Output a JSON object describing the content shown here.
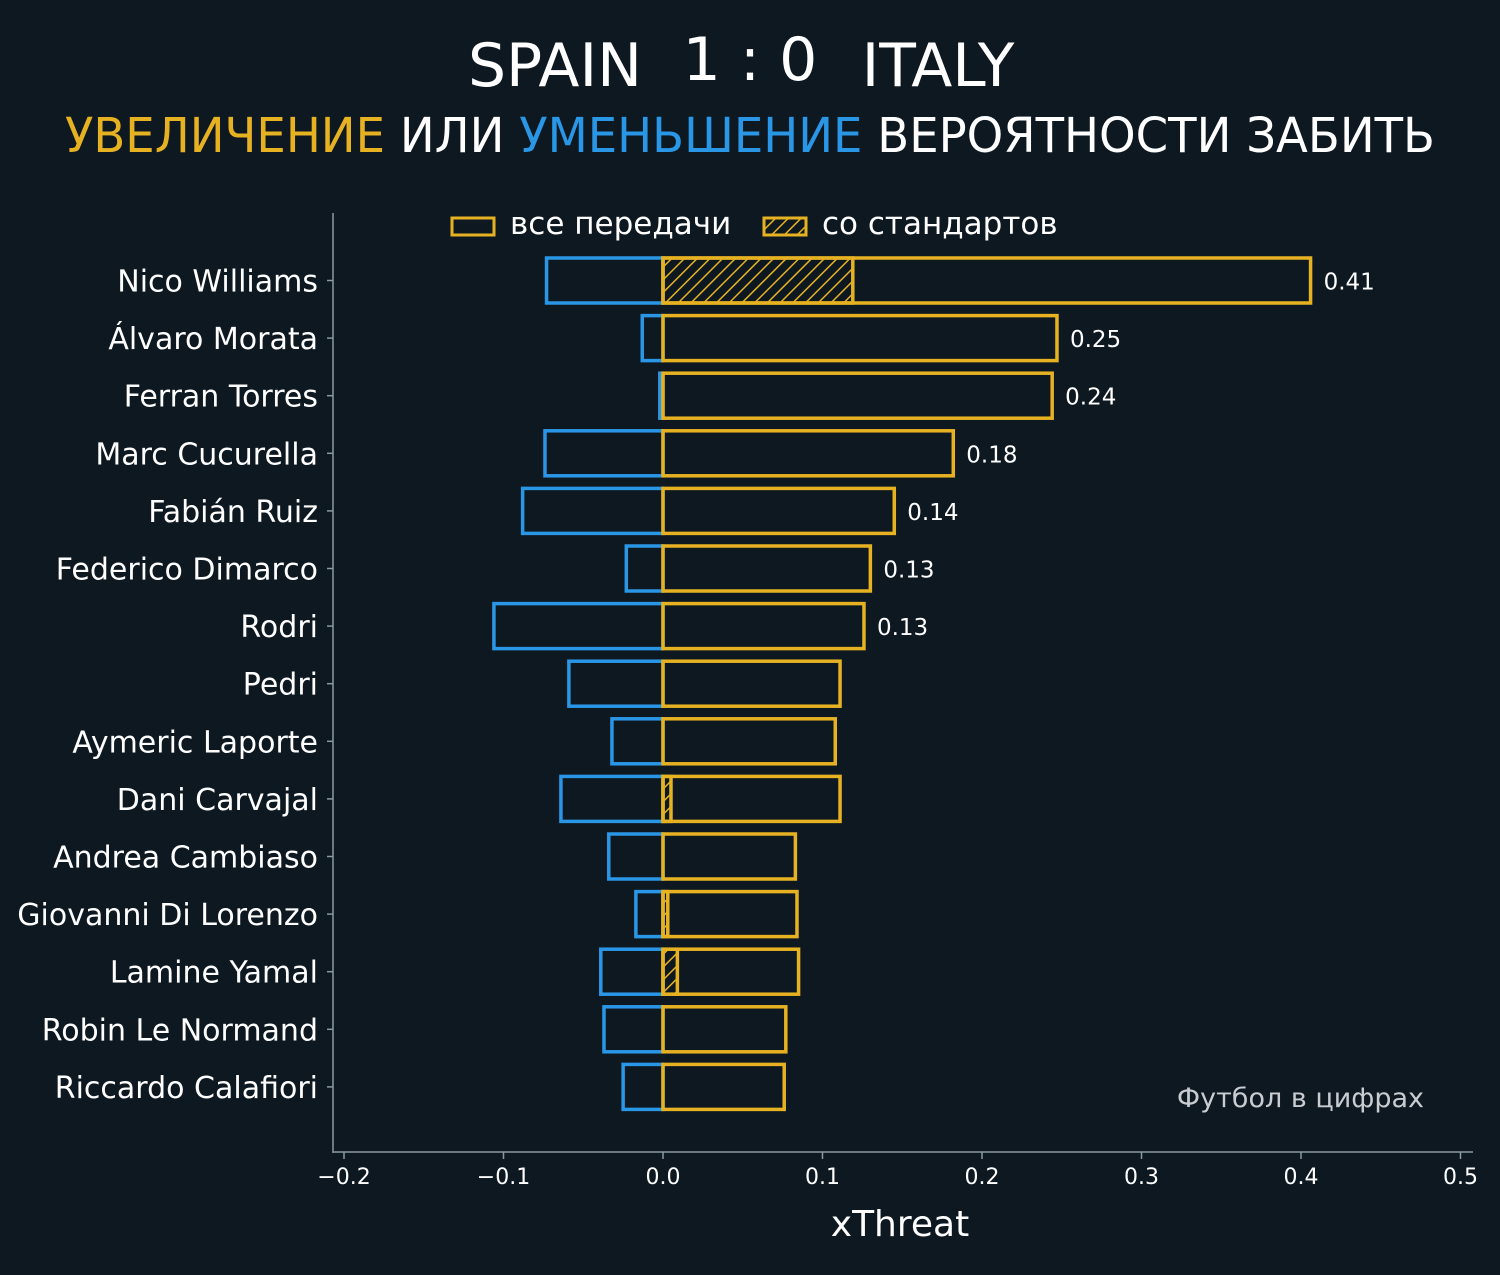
{
  "header": {
    "home_team": "SPAIN",
    "score": "1 : 0",
    "away_team": "ITALY",
    "subtitle_part1": "УВЕЛИЧЕНИЕ",
    "subtitle_part2": " ИЛИ ",
    "subtitle_part3": "УМЕНЬШЕНИЕ",
    "subtitle_part4": " ВЕРОЯТНОСТИ ЗАБИТЬ"
  },
  "watermark": "Футбол в цифрах",
  "colors": {
    "background": "#0e1821",
    "increase": "#e6b222",
    "decrease": "#2a96e6",
    "text": "#ffffff",
    "axis": "#8a9aa2"
  },
  "chart_data": {
    "type": "bar",
    "orientation": "horizontal",
    "title": "SPAIN 1 : 0 ITALY",
    "subtitle": "УВЕЛИЧЕНИЕ ИЛИ УМЕНЬШЕНИЕ ВЕРОЯТНОСТИ ЗАБИТЬ",
    "xlabel": "xThreat",
    "ylabel": "",
    "xlim": [
      -0.2,
      0.5
    ],
    "xticks": [
      -0.2,
      -0.1,
      0.0,
      0.1,
      0.2,
      0.3,
      0.4,
      0.5
    ],
    "xtick_labels": [
      "−0.2",
      "−0.1",
      "0.0",
      "0.1",
      "0.2",
      "0.3",
      "0.4",
      "0.5"
    ],
    "legend": {
      "position": "top",
      "entries": [
        {
          "label": "все передачи",
          "style": "outline"
        },
        {
          "label": "со стандартов",
          "style": "hatched"
        }
      ]
    },
    "categories": [
      "Nico Williams",
      "Álvaro Morata",
      "Ferran Torres",
      "Marc Cucurella",
      "Fabián Ruiz",
      "Federico Dimarco",
      "Rodri",
      "Pedri",
      "Aymeric Laporte",
      "Dani Carvajal",
      "Andrea Cambiaso",
      "Giovanni Di Lorenzo",
      "Lamine Yamal",
      "Robin Le Normand",
      "Riccardo Calafiori"
    ],
    "series": [
      {
        "name": "positive (все передачи)",
        "values": [
          0.406,
          0.247,
          0.244,
          0.182,
          0.145,
          0.13,
          0.126,
          0.111,
          0.108,
          0.111,
          0.083,
          0.084,
          0.085,
          0.077,
          0.076
        ]
      },
      {
        "name": "negative (все передачи)",
        "values": [
          -0.073,
          -0.013,
          -0.002,
          -0.074,
          -0.088,
          -0.023,
          -0.106,
          -0.059,
          -0.032,
          -0.064,
          -0.034,
          -0.017,
          -0.039,
          -0.037,
          -0.025
        ]
      },
      {
        "name": "со стандартов",
        "values": [
          0.119,
          0,
          0,
          0,
          0,
          0,
          0,
          0,
          0,
          0.005,
          0,
          0.003,
          0.009,
          0,
          0
        ]
      }
    ],
    "value_labels": [
      "0.41",
      "0.25",
      "0.24",
      "0.18",
      "0.14",
      "0.13",
      "0.13",
      "",
      "",
      "",
      "",
      "",
      "",
      "",
      ""
    ]
  }
}
